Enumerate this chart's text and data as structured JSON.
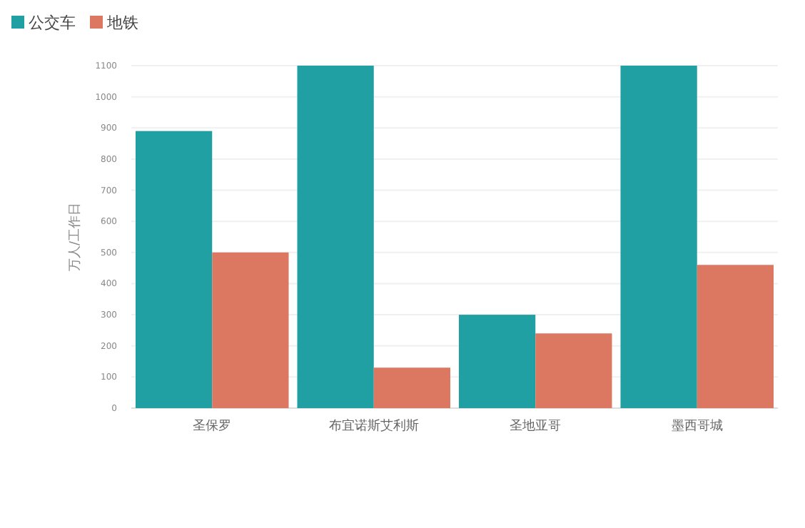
{
  "chart_data": {
    "type": "bar",
    "ylabel": "万人/工作日",
    "categories": [
      "圣保罗",
      "布宜诺斯艾利斯",
      "圣地亚哥",
      "墨西哥城"
    ],
    "series": [
      {
        "name": "公交车",
        "color": "#21a0a4",
        "values": [
          890,
          1100,
          300,
          1100
        ]
      },
      {
        "name": "地铁",
        "color": "#dc7762",
        "values": [
          500,
          130,
          240,
          460
        ]
      }
    ],
    "ylim": [
      0,
      1100
    ],
    "yticks": [
      0,
      100,
      200,
      300,
      400,
      500,
      600,
      700,
      800,
      900,
      1000,
      1100
    ],
    "grid": "y",
    "legend": "top left"
  }
}
